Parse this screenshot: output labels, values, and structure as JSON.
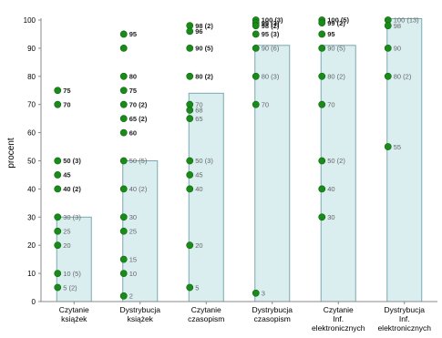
{
  "chart_data": {
    "type": "bar",
    "ylabel": "procent",
    "xlabel": "",
    "title": "",
    "ylim": [
      0,
      100
    ],
    "yticks": [
      0,
      10,
      20,
      30,
      40,
      50,
      60,
      70,
      80,
      90,
      100
    ],
    "grid": false,
    "colors": {
      "bar_fill": "#daeef0",
      "bar_stroke": "#7aa8b0",
      "point": "#1a8a1a",
      "axis": "#888888"
    },
    "categories": [
      [
        "Czytanie",
        "książek"
      ],
      [
        "Dystrybucja",
        "książek"
      ],
      [
        "Czytanie",
        "czasopism"
      ],
      [
        "Dystrybucja",
        "czasopism"
      ],
      [
        "Czytanie",
        "Inf.",
        "elektronicznych"
      ],
      [
        "Dystrybucja",
        "Inf.",
        "elektronicznych"
      ]
    ],
    "values": [
      30,
      50,
      74,
      91,
      91,
      100.5
    ],
    "points": [
      [
        {
          "y": 75,
          "label": "75"
        },
        {
          "y": 70,
          "label": "70"
        },
        {
          "y": 50,
          "label": "50 (3)"
        },
        {
          "y": 45,
          "label": "45"
        },
        {
          "y": 40,
          "label": "40 (2)"
        },
        {
          "y": 30,
          "label": "30 (3)"
        },
        {
          "y": 25,
          "label": "25"
        },
        {
          "y": 20,
          "label": "20"
        },
        {
          "y": 10,
          "label": "10 (5)"
        },
        {
          "y": 5,
          "label": "5 (2)"
        }
      ],
      [
        {
          "y": 95,
          "label": "95"
        },
        {
          "y": 90,
          "label": ""
        },
        {
          "y": 80,
          "label": "80"
        },
        {
          "y": 75,
          "label": "75"
        },
        {
          "y": 70,
          "label": "70 (2)"
        },
        {
          "y": 65,
          "label": "65 (2)"
        },
        {
          "y": 60,
          "label": "60"
        },
        {
          "y": 50,
          "label": "50 (5)"
        },
        {
          "y": 40,
          "label": "40 (2)"
        },
        {
          "y": 30,
          "label": "30"
        },
        {
          "y": 25,
          "label": "25"
        },
        {
          "y": 15,
          "label": "15"
        },
        {
          "y": 10,
          "label": "10"
        },
        {
          "y": 2,
          "label": "2"
        }
      ],
      [
        {
          "y": 98,
          "label": "98 (2)"
        },
        {
          "y": 96,
          "label": "96"
        },
        {
          "y": 90,
          "label": "90 (5)"
        },
        {
          "y": 80,
          "label": "80 (2)"
        },
        {
          "y": 70,
          "label": "70"
        },
        {
          "y": 68,
          "label": "68"
        },
        {
          "y": 65,
          "label": "65"
        },
        {
          "y": 50,
          "label": "50 (3)"
        },
        {
          "y": 45,
          "label": "45"
        },
        {
          "y": 40,
          "label": "40"
        },
        {
          "y": 20,
          "label": "20"
        },
        {
          "y": 5,
          "label": "5"
        }
      ],
      [
        {
          "y": 100,
          "label": "100 (3)"
        },
        {
          "y": 99,
          "label": "99 (3)"
        },
        {
          "y": 98,
          "label": "98 (2)"
        },
        {
          "y": 95,
          "label": "95 (3)"
        },
        {
          "y": 90,
          "label": "90 (6)"
        },
        {
          "y": 80,
          "label": "80 (3)"
        },
        {
          "y": 70,
          "label": "70"
        },
        {
          "y": 3,
          "label": "3"
        }
      ],
      [
        {
          "y": 100,
          "label": "100 (5)"
        },
        {
          "y": 99,
          "label": "99 (2)"
        },
        {
          "y": 95,
          "label": "95"
        },
        {
          "y": 90,
          "label": "90 (5)"
        },
        {
          "y": 80,
          "label": "80 (2)"
        },
        {
          "y": 70,
          "label": "70"
        },
        {
          "y": 50,
          "label": "50 (2)"
        },
        {
          "y": 40,
          "label": "40"
        },
        {
          "y": 30,
          "label": "30"
        }
      ],
      [
        {
          "y": 100,
          "label": "100 (13)"
        },
        {
          "y": 98,
          "label": "98"
        },
        {
          "y": 90,
          "label": "90"
        },
        {
          "y": 80,
          "label": "80 (2)"
        },
        {
          "y": 55,
          "label": "55"
        }
      ]
    ]
  }
}
